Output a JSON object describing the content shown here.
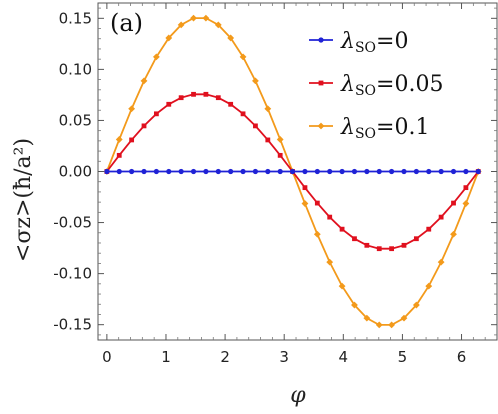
{
  "chart_data": {
    "type": "line",
    "panel_label": "(a)",
    "xlabel": "φ",
    "ylabel": "<σz>(ħ/a²)",
    "xlim": [
      -0.15,
      6.6
    ],
    "ylim": [
      -0.165,
      0.165
    ],
    "x_ticks": [
      0,
      1,
      2,
      3,
      4,
      5,
      6
    ],
    "x_tick_labels": [
      "0",
      "1",
      "2",
      "3",
      "4",
      "5",
      "6"
    ],
    "y_ticks": [
      -0.15,
      -0.1,
      -0.05,
      0.0,
      0.05,
      0.1,
      0.15
    ],
    "y_tick_labels": [
      "-0.15",
      "-0.10",
      "-0.05",
      "0.00",
      "0.05",
      "0.10",
      "0.15"
    ],
    "grid": false,
    "legend": "top-right",
    "series": [
      {
        "name": "λSO=0",
        "legend_main": "λ",
        "legend_sub": "SO",
        "legend_rest": "=0",
        "color": "#1f22d6",
        "marker": "circle",
        "amplitude": 0.0
      },
      {
        "name": "λSO=0.05",
        "legend_main": "λ",
        "legend_sub": "SO",
        "legend_rest": "=0.05",
        "color": "#e0101e",
        "marker": "square",
        "amplitude": 0.076
      },
      {
        "name": "λSO=0.1",
        "legend_main": "λ",
        "legend_sub": "SO",
        "legend_rest": "=0.1",
        "color": "#f39a1b",
        "marker": "diamond",
        "amplitude": 0.151
      }
    ],
    "x_points": 31,
    "x_max": 6.2832
  }
}
